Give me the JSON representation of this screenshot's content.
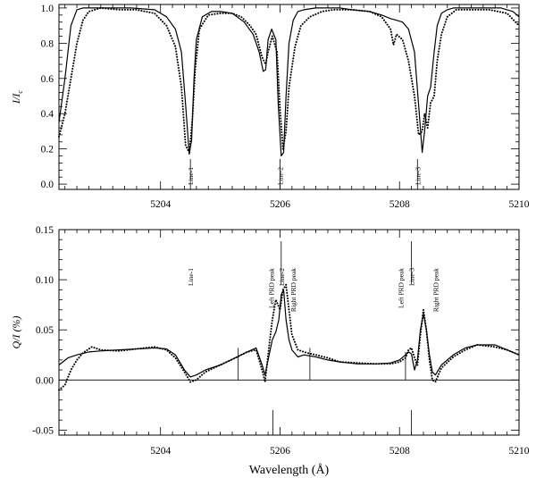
{
  "chart_data": [
    {
      "type": "line",
      "title": "",
      "xlabel": "",
      "ylabel": "I/I",
      "ylabel_subscript": "c",
      "xlim": [
        5202.3,
        5210
      ],
      "ylim": [
        -0.03,
        1.02
      ],
      "xticks": [
        5204,
        5206,
        5208,
        5210
      ],
      "xtick_labels": [
        "5204",
        "5206",
        "5208",
        "5210"
      ],
      "yticks": [
        0.0,
        0.2,
        0.4,
        0.6,
        0.8,
        1.0
      ],
      "ytick_labels": [
        "0.0",
        "0.2",
        "0.4",
        "0.6",
        "0.8",
        "1.0"
      ],
      "grid": false,
      "legend": "none",
      "series": [
        {
          "style": "solid",
          "x": [
            5202.3,
            5202.4,
            5202.5,
            5202.6,
            5202.7,
            5202.8,
            5203.0,
            5203.5,
            5203.9,
            5204.1,
            5204.25,
            5204.35,
            5204.42,
            5204.48,
            5204.52,
            5204.56,
            5204.6,
            5204.7,
            5204.85,
            5205.0,
            5205.2,
            5205.4,
            5205.55,
            5205.65,
            5205.72,
            5205.76,
            5205.8,
            5205.86,
            5205.93,
            5205.97,
            5206.02,
            5206.06,
            5206.1,
            5206.15,
            5206.22,
            5206.3,
            5206.4,
            5206.6,
            5206.8,
            5207.0,
            5207.2,
            5207.5,
            5207.7,
            5207.85,
            5207.95,
            5208.05,
            5208.15,
            5208.25,
            5208.32,
            5208.38,
            5208.42,
            5208.47,
            5208.52,
            5208.58,
            5208.63,
            5208.7,
            5208.8,
            5208.9,
            5209.1,
            5209.4,
            5209.7,
            5209.9,
            5210.0
          ],
          "y": [
            0.35,
            0.6,
            0.9,
            0.99,
            1.0,
            1.0,
            1.0,
            1.0,
            0.99,
            0.95,
            0.88,
            0.75,
            0.45,
            0.17,
            0.25,
            0.6,
            0.82,
            0.95,
            0.98,
            0.98,
            0.97,
            0.92,
            0.85,
            0.75,
            0.64,
            0.65,
            0.82,
            0.88,
            0.82,
            0.45,
            0.16,
            0.18,
            0.5,
            0.8,
            0.93,
            0.98,
            0.99,
            1.0,
            1.0,
            1.0,
            0.99,
            0.98,
            0.96,
            0.94,
            0.93,
            0.92,
            0.88,
            0.75,
            0.45,
            0.18,
            0.3,
            0.5,
            0.55,
            0.75,
            0.9,
            0.97,
            0.99,
            1.0,
            1.0,
            1.0,
            1.0,
            0.98,
            0.95
          ]
        },
        {
          "style": "dotted",
          "x": [
            5202.3,
            5202.4,
            5202.5,
            5202.6,
            5202.7,
            5202.8,
            5203.0,
            5203.3,
            5203.6,
            5203.9,
            5204.1,
            5204.25,
            5204.35,
            5204.42,
            5204.48,
            5204.53,
            5204.58,
            5204.65,
            5204.8,
            5205.0,
            5205.2,
            5205.35,
            5205.5,
            5205.6,
            5205.7,
            5205.76,
            5205.8,
            5205.87,
            5205.95,
            5206.0,
            5206.05,
            5206.1,
            5206.15,
            5206.25,
            5206.35,
            5206.5,
            5206.7,
            5206.9,
            5207.2,
            5207.5,
            5207.7,
            5207.85,
            5207.9,
            5207.95,
            5208.05,
            5208.15,
            5208.25,
            5208.32,
            5208.38,
            5208.42,
            5208.47,
            5208.52,
            5208.58,
            5208.63,
            5208.7,
            5208.8,
            5208.95,
            5209.2,
            5209.5,
            5209.8,
            5210.0
          ],
          "y": [
            0.27,
            0.4,
            0.6,
            0.8,
            0.93,
            0.98,
            1.0,
            0.99,
            0.99,
            0.97,
            0.9,
            0.78,
            0.55,
            0.22,
            0.18,
            0.35,
            0.65,
            0.88,
            0.96,
            0.97,
            0.97,
            0.95,
            0.9,
            0.85,
            0.72,
            0.68,
            0.75,
            0.84,
            0.75,
            0.42,
            0.2,
            0.3,
            0.55,
            0.78,
            0.9,
            0.95,
            0.98,
            0.99,
            0.99,
            0.98,
            0.95,
            0.88,
            0.79,
            0.85,
            0.82,
            0.7,
            0.5,
            0.28,
            0.3,
            0.4,
            0.32,
            0.46,
            0.5,
            0.7,
            0.85,
            0.95,
            0.99,
            0.99,
            0.99,
            0.97,
            0.9
          ]
        }
      ],
      "annotations": [
        {
          "label": "Line-1",
          "x": 5204.5
        },
        {
          "label": "Line-2",
          "x": 5206.0
        },
        {
          "label": "Line-3",
          "x": 5208.3
        }
      ]
    },
    {
      "type": "line",
      "title": "",
      "xlabel": "Wavelength (Å)",
      "ylabel": "Q/I (%)",
      "xlim": [
        5202.3,
        5210
      ],
      "ylim": [
        -0.055,
        0.15
      ],
      "xticks": [
        5204,
        5206,
        5208,
        5210
      ],
      "xtick_labels": [
        "5204",
        "5206",
        "5208",
        "5210"
      ],
      "yticks": [
        -0.05,
        0.0,
        0.05,
        0.1,
        0.15
      ],
      "ytick_labels": [
        "-0.05",
        "0.00",
        "0.05",
        "0.10",
        "0.15"
      ],
      "grid": false,
      "legend": "none",
      "zero_line": 0.0,
      "series": [
        {
          "style": "solid",
          "x": [
            5202.3,
            5202.45,
            5202.6,
            5202.8,
            5203.0,
            5203.3,
            5203.6,
            5203.9,
            5204.1,
            5204.25,
            5204.4,
            5204.5,
            5204.6,
            5204.75,
            5205.0,
            5205.25,
            5205.45,
            5205.6,
            5205.7,
            5205.75,
            5205.8,
            5205.87,
            5205.93,
            5205.98,
            5206.02,
            5206.06,
            5206.1,
            5206.15,
            5206.2,
            5206.3,
            5206.4,
            5206.6,
            5206.8,
            5207.0,
            5207.3,
            5207.6,
            5207.85,
            5208.0,
            5208.1,
            5208.15,
            5208.2,
            5208.25,
            5208.3,
            5208.35,
            5208.4,
            5208.45,
            5208.5,
            5208.55,
            5208.6,
            5208.7,
            5208.9,
            5209.1,
            5209.3,
            5209.6,
            5209.8,
            5210.0
          ],
          "y": [
            0.015,
            0.022,
            0.025,
            0.028,
            0.029,
            0.03,
            0.031,
            0.032,
            0.031,
            0.025,
            0.01,
            0.003,
            0.005,
            0.01,
            0.015,
            0.022,
            0.028,
            0.032,
            0.015,
            0.005,
            0.02,
            0.04,
            0.048,
            0.06,
            0.085,
            0.09,
            0.06,
            0.04,
            0.03,
            0.023,
            0.025,
            0.023,
            0.02,
            0.018,
            0.016,
            0.016,
            0.017,
            0.02,
            0.025,
            0.028,
            0.026,
            0.01,
            0.02,
            0.05,
            0.066,
            0.05,
            0.025,
            0.008,
            0.005,
            0.015,
            0.025,
            0.032,
            0.035,
            0.035,
            0.03,
            0.025
          ]
        },
        {
          "style": "dotted",
          "x": [
            5202.3,
            5202.4,
            5202.5,
            5202.6,
            5202.7,
            5202.85,
            5203.0,
            5203.3,
            5203.6,
            5203.9,
            5204.1,
            5204.25,
            5204.4,
            5204.5,
            5204.6,
            5204.75,
            5205.0,
            5205.25,
            5205.45,
            5205.6,
            5205.7,
            5205.75,
            5205.8,
            5205.87,
            5205.93,
            5206.0,
            5206.05,
            5206.1,
            5206.15,
            5206.2,
            5206.3,
            5206.45,
            5206.6,
            5206.8,
            5207.0,
            5207.3,
            5207.6,
            5207.85,
            5208.0,
            5208.1,
            5208.15,
            5208.2,
            5208.25,
            5208.3,
            5208.35,
            5208.4,
            5208.45,
            5208.5,
            5208.55,
            5208.6,
            5208.7,
            5208.9,
            5209.1,
            5209.3,
            5209.6,
            5209.8,
            5210.0
          ],
          "y": [
            -0.01,
            -0.005,
            0.01,
            0.02,
            0.027,
            0.033,
            0.03,
            0.029,
            0.031,
            0.033,
            0.03,
            0.022,
            0.008,
            -0.002,
            0.0,
            0.008,
            0.015,
            0.022,
            0.028,
            0.03,
            0.01,
            -0.002,
            0.025,
            0.06,
            0.08,
            0.07,
            0.09,
            0.095,
            0.07,
            0.045,
            0.03,
            0.027,
            0.025,
            0.022,
            0.018,
            0.017,
            0.016,
            0.016,
            0.018,
            0.022,
            0.03,
            0.032,
            0.022,
            0.015,
            0.045,
            0.07,
            0.05,
            0.02,
            0.0,
            -0.002,
            0.012,
            0.023,
            0.03,
            0.035,
            0.033,
            0.03,
            0.025
          ]
        }
      ],
      "annotations": [
        {
          "label": "Line-1",
          "x": 5204.5
        },
        {
          "label": "Left PRD peak",
          "x": 5205.85
        },
        {
          "label": "Line-2",
          "x": 5206.02
        },
        {
          "label": "Right PRD peak",
          "x": 5206.22
        },
        {
          "label": "Left PRD peak",
          "x": 5208.02
        },
        {
          "label": "Line-3",
          "x": 5208.2
        },
        {
          "label": "Right PRD peak",
          "x": 5208.6
        }
      ],
      "markers": [
        {
          "x": 5205.3,
          "y0": 0.0,
          "y1": 0.032
        },
        {
          "x": 5206.5,
          "y0": 0.0,
          "y1": 0.032
        },
        {
          "x": 5208.1,
          "y0": 0.0,
          "y1": 0.028
        },
        {
          "x": 5205.88,
          "y0": -0.055,
          "y1": -0.03
        },
        {
          "x": 5208.2,
          "y0": -0.055,
          "y1": -0.03
        }
      ]
    }
  ]
}
